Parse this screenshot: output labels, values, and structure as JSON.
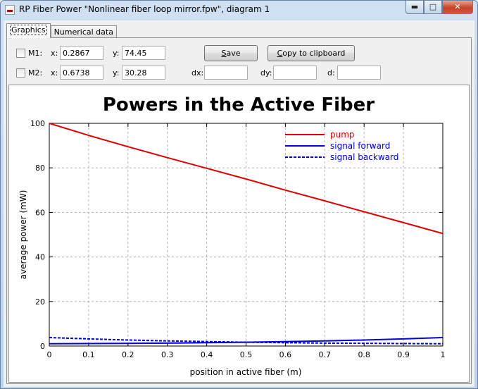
{
  "window": {
    "title": "RP Fiber Power \"Nonlinear fiber loop mirror.fpw\", diagram 1"
  },
  "tabs": [
    {
      "label": "Graphics",
      "active": true
    },
    {
      "label": "Numerical data",
      "active": false
    }
  ],
  "markers": {
    "m1": {
      "label": "M1:",
      "x_label": "x:",
      "x": "0.2867",
      "y_label": "y:",
      "y": "74.45",
      "checked": false
    },
    "m2": {
      "label": "M2:",
      "x_label": "x:",
      "x": "0.6738",
      "y_label": "y:",
      "y": "30.28",
      "checked": false
    }
  },
  "buttons": {
    "save_prefix": "",
    "save_hotkey": "S",
    "save_rest": "ave",
    "copy_hotkey": "C",
    "copy_rest": "opy to clipboard"
  },
  "deltas": {
    "dx_label": "dx:",
    "dx": "",
    "dy_label": "dy:",
    "dy": "",
    "d_label": "d:",
    "d": ""
  },
  "colors": {
    "pump": "#e00000",
    "signal": "#0000e0",
    "grid": "#b4b4b4"
  },
  "chart_data": {
    "type": "line",
    "title": "Powers in the Active Fiber",
    "xlabel": "position in active fiber (m)",
    "ylabel": "average power (mW)",
    "xlim": [
      0,
      1
    ],
    "ylim": [
      0,
      100
    ],
    "xticks": [
      "0",
      "0.1",
      "0.2",
      "0.3",
      "0.4",
      "0.5",
      "0.6",
      "0.7",
      "0.8",
      "0.9",
      "1"
    ],
    "yticks": [
      "0",
      "20",
      "40",
      "60",
      "80",
      "100"
    ],
    "grid": true,
    "legend_position": "top-right",
    "x": [
      0,
      0.1,
      0.2,
      0.3,
      0.4,
      0.5,
      0.6,
      0.7,
      0.8,
      0.9,
      1.0
    ],
    "series": [
      {
        "name": "pump",
        "color": "#e00000",
        "dash": false,
        "values": [
          100,
          94.6,
          89.5,
          84.6,
          79.8,
          75.0,
          70.0,
          65.2,
          60.3,
          55.4,
          50.5
        ]
      },
      {
        "name": "signal forward",
        "color": "#0000e0",
        "dash": false,
        "values": [
          1.0,
          1.1,
          1.2,
          1.3,
          1.5,
          1.7,
          2.0,
          2.3,
          2.7,
          3.2,
          3.8
        ]
      },
      {
        "name": "signal backward",
        "color": "#0000e0",
        "dash": true,
        "values": [
          3.8,
          3.2,
          2.7,
          2.3,
          2.0,
          1.7,
          1.5,
          1.3,
          1.2,
          1.1,
          1.0
        ]
      }
    ]
  }
}
